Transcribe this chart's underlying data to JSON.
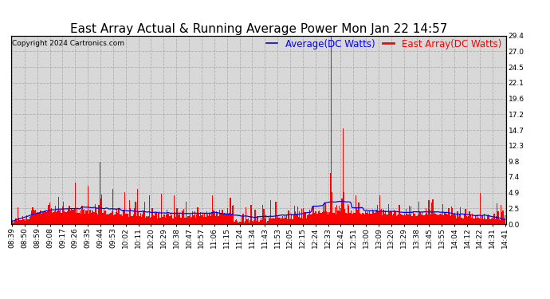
{
  "title": "East Array Actual & Running Average Power Mon Jan 22 14:57",
  "copyright": "Copyright 2024 Cartronics.com",
  "legend_avg": "Average(DC Watts)",
  "legend_east": "East Array(DC Watts)",
  "avg_color": "blue",
  "east_color": "red",
  "background_color": "#ffffff",
  "plot_bg_color": "#d8d8d8",
  "ylim": [
    0,
    29.4
  ],
  "yticks": [
    0.0,
    2.5,
    4.9,
    7.4,
    9.8,
    12.3,
    14.7,
    17.2,
    19.6,
    22.1,
    24.5,
    27.0,
    29.4
  ],
  "xtick_labels": [
    "08:39",
    "08:50",
    "08:59",
    "09:08",
    "09:17",
    "09:26",
    "09:35",
    "09:44",
    "09:53",
    "10:02",
    "10:11",
    "10:20",
    "10:29",
    "10:38",
    "10:47",
    "10:57",
    "11:06",
    "11:15",
    "11:24",
    "11:34",
    "11:43",
    "11:53",
    "12:05",
    "12:15",
    "12:24",
    "12:33",
    "12:42",
    "12:51",
    "13:00",
    "13:09",
    "13:20",
    "13:29",
    "13:38",
    "13:45",
    "13:55",
    "14:04",
    "14:12",
    "14:22",
    "14:31",
    "14:41"
  ],
  "title_fontsize": 11,
  "copyright_fontsize": 6.5,
  "tick_fontsize": 6.5,
  "legend_fontsize": 8.5,
  "grid_color": "#aaaaaa",
  "grid_linestyle": "--",
  "grid_alpha": 0.9
}
